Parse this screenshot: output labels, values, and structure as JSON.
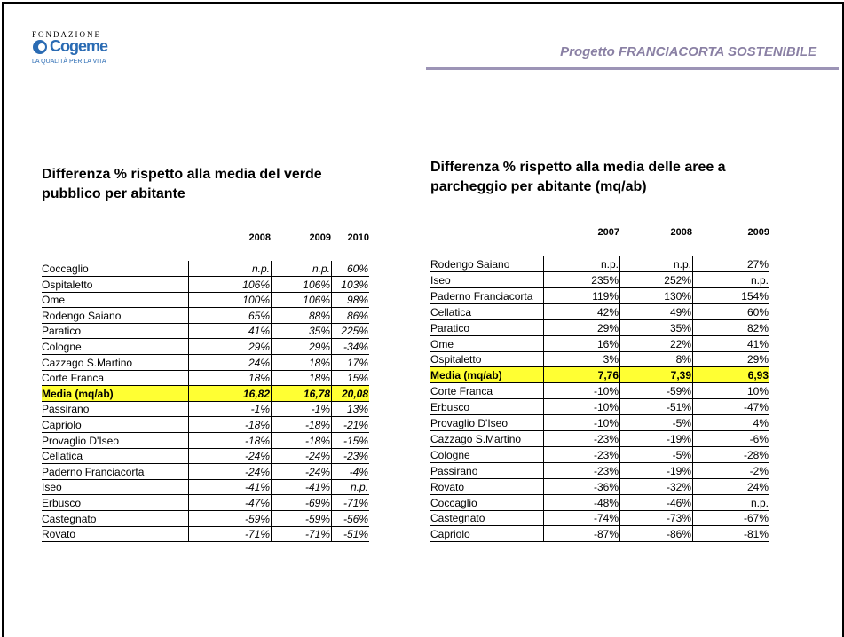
{
  "header": {
    "logo_top": "FONDAZIONE",
    "logo_name": "Cogeme",
    "logo_tag": "LA QUALITÀ PER LA VITA",
    "project": "Progetto FRANCIACORTA SOSTENIBILE"
  },
  "table1": {
    "title": "Differenza % rispetto alla media del verde pubblico per abitante",
    "columns": [
      "2008",
      "2009",
      "2010"
    ],
    "rows": [
      [
        "Coccaglio",
        "n.p.",
        "n.p.",
        "60%"
      ],
      [
        "Ospitaletto",
        "106%",
        "106%",
        "103%"
      ],
      [
        "Ome",
        "100%",
        "106%",
        "98%"
      ],
      [
        "Rodengo Saiano",
        "65%",
        "88%",
        "86%"
      ],
      [
        "Paratico",
        "41%",
        "35%",
        "225%"
      ],
      [
        "Cologne",
        "29%",
        "29%",
        "-34%"
      ],
      [
        "Cazzago S.Martino",
        "24%",
        "18%",
        "17%"
      ],
      [
        "Corte Franca",
        "18%",
        "18%",
        "15%"
      ],
      [
        "Media (mq/ab)",
        "16,82",
        "16,78",
        "20,08"
      ],
      [
        "Passirano",
        "-1%",
        "-1%",
        "13%"
      ],
      [
        "Capriolo",
        "-18%",
        "-18%",
        "-21%"
      ],
      [
        "Provaglio D'Iseo",
        "-18%",
        "-18%",
        "-15%"
      ],
      [
        "Cellatica",
        "-24%",
        "-24%",
        "-23%"
      ],
      [
        "Paderno Franciacorta",
        "-24%",
        "-24%",
        "-4%"
      ],
      [
        "Iseo",
        "-41%",
        "-41%",
        "n.p."
      ],
      [
        "Erbusco",
        "-47%",
        "-69%",
        "-71%"
      ],
      [
        "Castegnato",
        "-59%",
        "-59%",
        "-56%"
      ],
      [
        "Rovato",
        "-71%",
        "-71%",
        "-51%"
      ]
    ]
  },
  "table2": {
    "title": "Differenza % rispetto alla media delle aree a parcheggio per abitante (mq/ab)",
    "columns": [
      "2007",
      "2008",
      "2009"
    ],
    "rows": [
      [
        "Rodengo Saiano",
        "n.p.",
        "n.p.",
        "27%"
      ],
      [
        "Iseo",
        "235%",
        "252%",
        "n.p."
      ],
      [
        "Paderno Franciacorta",
        "119%",
        "130%",
        "154%"
      ],
      [
        "Cellatica",
        "42%",
        "49%",
        "60%"
      ],
      [
        "Paratico",
        "29%",
        "35%",
        "82%"
      ],
      [
        "Ome",
        "16%",
        "22%",
        "41%"
      ],
      [
        "Ospitaletto",
        "3%",
        "8%",
        "29%"
      ],
      [
        "Media  (mq/ab)",
        "7,76",
        "7,39",
        "6,93"
      ],
      [
        "Corte Franca",
        "-10%",
        "-59%",
        "10%"
      ],
      [
        "Erbusco",
        "-10%",
        "-51%",
        "-47%"
      ],
      [
        "Provaglio D'Iseo",
        "-10%",
        "-5%",
        "4%"
      ],
      [
        "Cazzago S.Martino",
        "-23%",
        "-19%",
        "-6%"
      ],
      [
        "Cologne",
        "-23%",
        "-5%",
        "-28%"
      ],
      [
        "Passirano",
        "-23%",
        "-19%",
        "-2%"
      ],
      [
        "Rovato",
        "-36%",
        "-32%",
        "24%"
      ],
      [
        "Coccaglio",
        "-48%",
        "-46%",
        "n.p."
      ],
      [
        "Castegnato",
        "-74%",
        "-73%",
        "-67%"
      ],
      [
        "Capriolo",
        "-87%",
        "-86%",
        "-81%"
      ]
    ]
  }
}
